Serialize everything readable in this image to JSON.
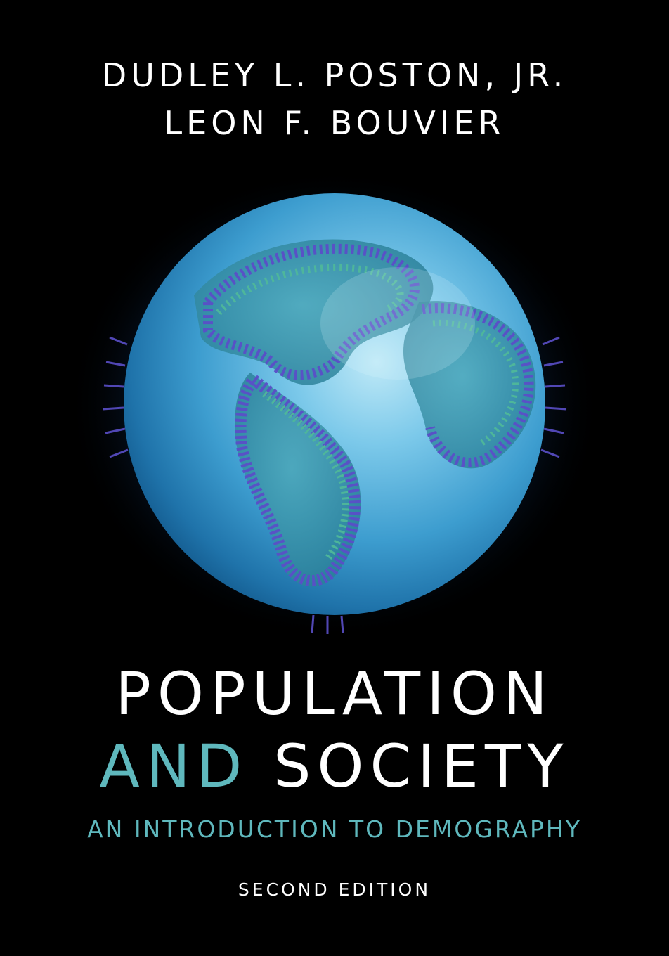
{
  "cover": {
    "authors": [
      "DUDLEY L. POSTON, JR.",
      "LEON F. BOUVIER"
    ],
    "title_line1": "POPULATION",
    "title_line2_accent": "AND",
    "title_line2_rest": "SOCIETY",
    "subtitle": "AN INTRODUCTION TO DEMOGRAPHY",
    "edition": "SECOND EDITION"
  },
  "colors": {
    "background": "#000000",
    "title_text": "#ffffff",
    "accent_teal": "#5fb8bd",
    "globe_ocean": "#3fa9d6",
    "crowd_purple": "#5a4fc8",
    "crowd_green": "#4fb89a"
  },
  "illustration": {
    "icon": "globe-with-crowds-illustration"
  }
}
